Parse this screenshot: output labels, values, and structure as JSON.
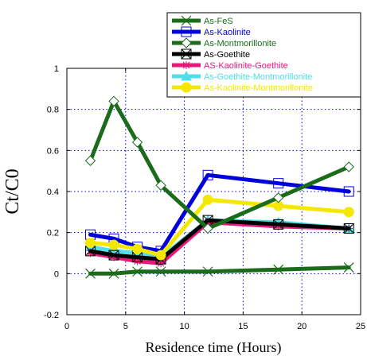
{
  "chart_data": {
    "type": "line",
    "title": "",
    "xlabel": "Residence time (Hours)",
    "ylabel": "Ct/C0",
    "xlim": [
      0,
      25
    ],
    "ylim": [
      -0.2,
      1
    ],
    "xticks": [
      0,
      5,
      10,
      15,
      20,
      25
    ],
    "yticks": [
      -0.2,
      0,
      0.2,
      0.4,
      0.6,
      0.8,
      1
    ],
    "xtick_labels": [
      "0",
      "5",
      "10",
      "15",
      "20",
      "25"
    ],
    "ytick_labels": [
      "-0.2",
      "0",
      "0.2",
      "0.4",
      "0.6",
      "0.8",
      "1"
    ],
    "grid": true,
    "legend_position": "top-right",
    "series": [
      {
        "name": "As-FeS",
        "color": "#1a6b1a",
        "marker": "x",
        "x": [
          2,
          4,
          6,
          8,
          12,
          18,
          24
        ],
        "y": [
          0.0,
          0.0,
          0.01,
          0.01,
          0.01,
          0.02,
          0.03
        ]
      },
      {
        "name": "As-Kaolinite",
        "color": "#0000dd",
        "marker": "square",
        "x": [
          2,
          4,
          6,
          8,
          12,
          18,
          24
        ],
        "y": [
          0.19,
          0.17,
          0.13,
          0.11,
          0.48,
          0.44,
          0.4
        ]
      },
      {
        "name": "As-Montmorillonite",
        "color": "#1a6b1a",
        "marker": "diamond",
        "x": [
          2,
          4,
          6,
          8,
          12,
          18,
          24
        ],
        "y": [
          0.55,
          0.84,
          0.64,
          0.43,
          0.22,
          0.37,
          0.52
        ]
      },
      {
        "name": "As-Goethite",
        "color": "#000000",
        "marker": "boxx",
        "x": [
          2,
          4,
          6,
          8,
          12,
          18,
          24
        ],
        "y": [
          0.11,
          0.09,
          0.08,
          0.07,
          0.26,
          0.24,
          0.22
        ]
      },
      {
        "name": "AS-Kaolinite-Goethite",
        "color": "#e8187a",
        "marker": "star",
        "x": [
          2,
          4,
          6,
          8,
          12,
          18,
          24
        ],
        "y": [
          0.1,
          0.08,
          0.06,
          0.05,
          0.25,
          0.23,
          0.22
        ]
      },
      {
        "name": "As-Goethite-Montmorillonite",
        "color": "#4ee0e8",
        "marker": "triangle",
        "x": [
          2,
          4,
          6,
          8,
          12,
          18,
          24
        ],
        "y": [
          0.13,
          0.11,
          0.1,
          0.08,
          0.26,
          0.25,
          0.22
        ]
      },
      {
        "name": "As-Kaolinite-Montmorillonite",
        "color": "#f4e800",
        "marker": "circle",
        "x": [
          2,
          4,
          6,
          8,
          12,
          18,
          24
        ],
        "y": [
          0.15,
          0.14,
          0.12,
          0.09,
          0.36,
          0.33,
          0.3
        ]
      }
    ]
  }
}
